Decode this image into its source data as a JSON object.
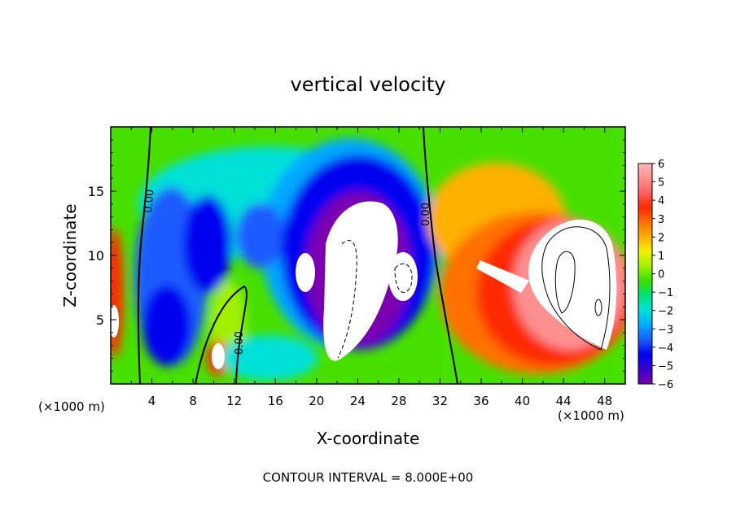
{
  "chart_data": {
    "type": "heatmap",
    "title": "vertical velocity",
    "xlabel": "X-coordinate",
    "ylabel": "Z-coordinate",
    "x_unit_label": "(×1000 m)",
    "x_unit_label_right": "(×1000 m)",
    "xlim": [
      0,
      50
    ],
    "ylim": [
      0,
      20
    ],
    "x_ticks": [
      4,
      8,
      12,
      16,
      20,
      24,
      28,
      32,
      36,
      40,
      44,
      48
    ],
    "y_ticks": [
      5,
      10,
      15
    ],
    "colorbar": {
      "ticks": [
        6,
        5,
        4,
        3,
        2,
        1,
        0,
        -1,
        -2,
        -3,
        -4,
        -5,
        -6
      ],
      "min": -6,
      "max": 6,
      "colors": [
        "#7a00b0",
        "#3a00c8",
        "#0000f0",
        "#1a5cff",
        "#00a8ff",
        "#00e0d8",
        "#00e080",
        "#38e000",
        "#a0f000",
        "#f0f000",
        "#ffb000",
        "#ff7000",
        "#ff2a00",
        "#ff6060",
        "#ff9090",
        "#ffb8b8"
      ]
    },
    "contour_labels": [
      "0.00",
      "0.00",
      "0.00"
    ],
    "footer": "CONTOUR INTERVAL = 8.000E+00"
  }
}
